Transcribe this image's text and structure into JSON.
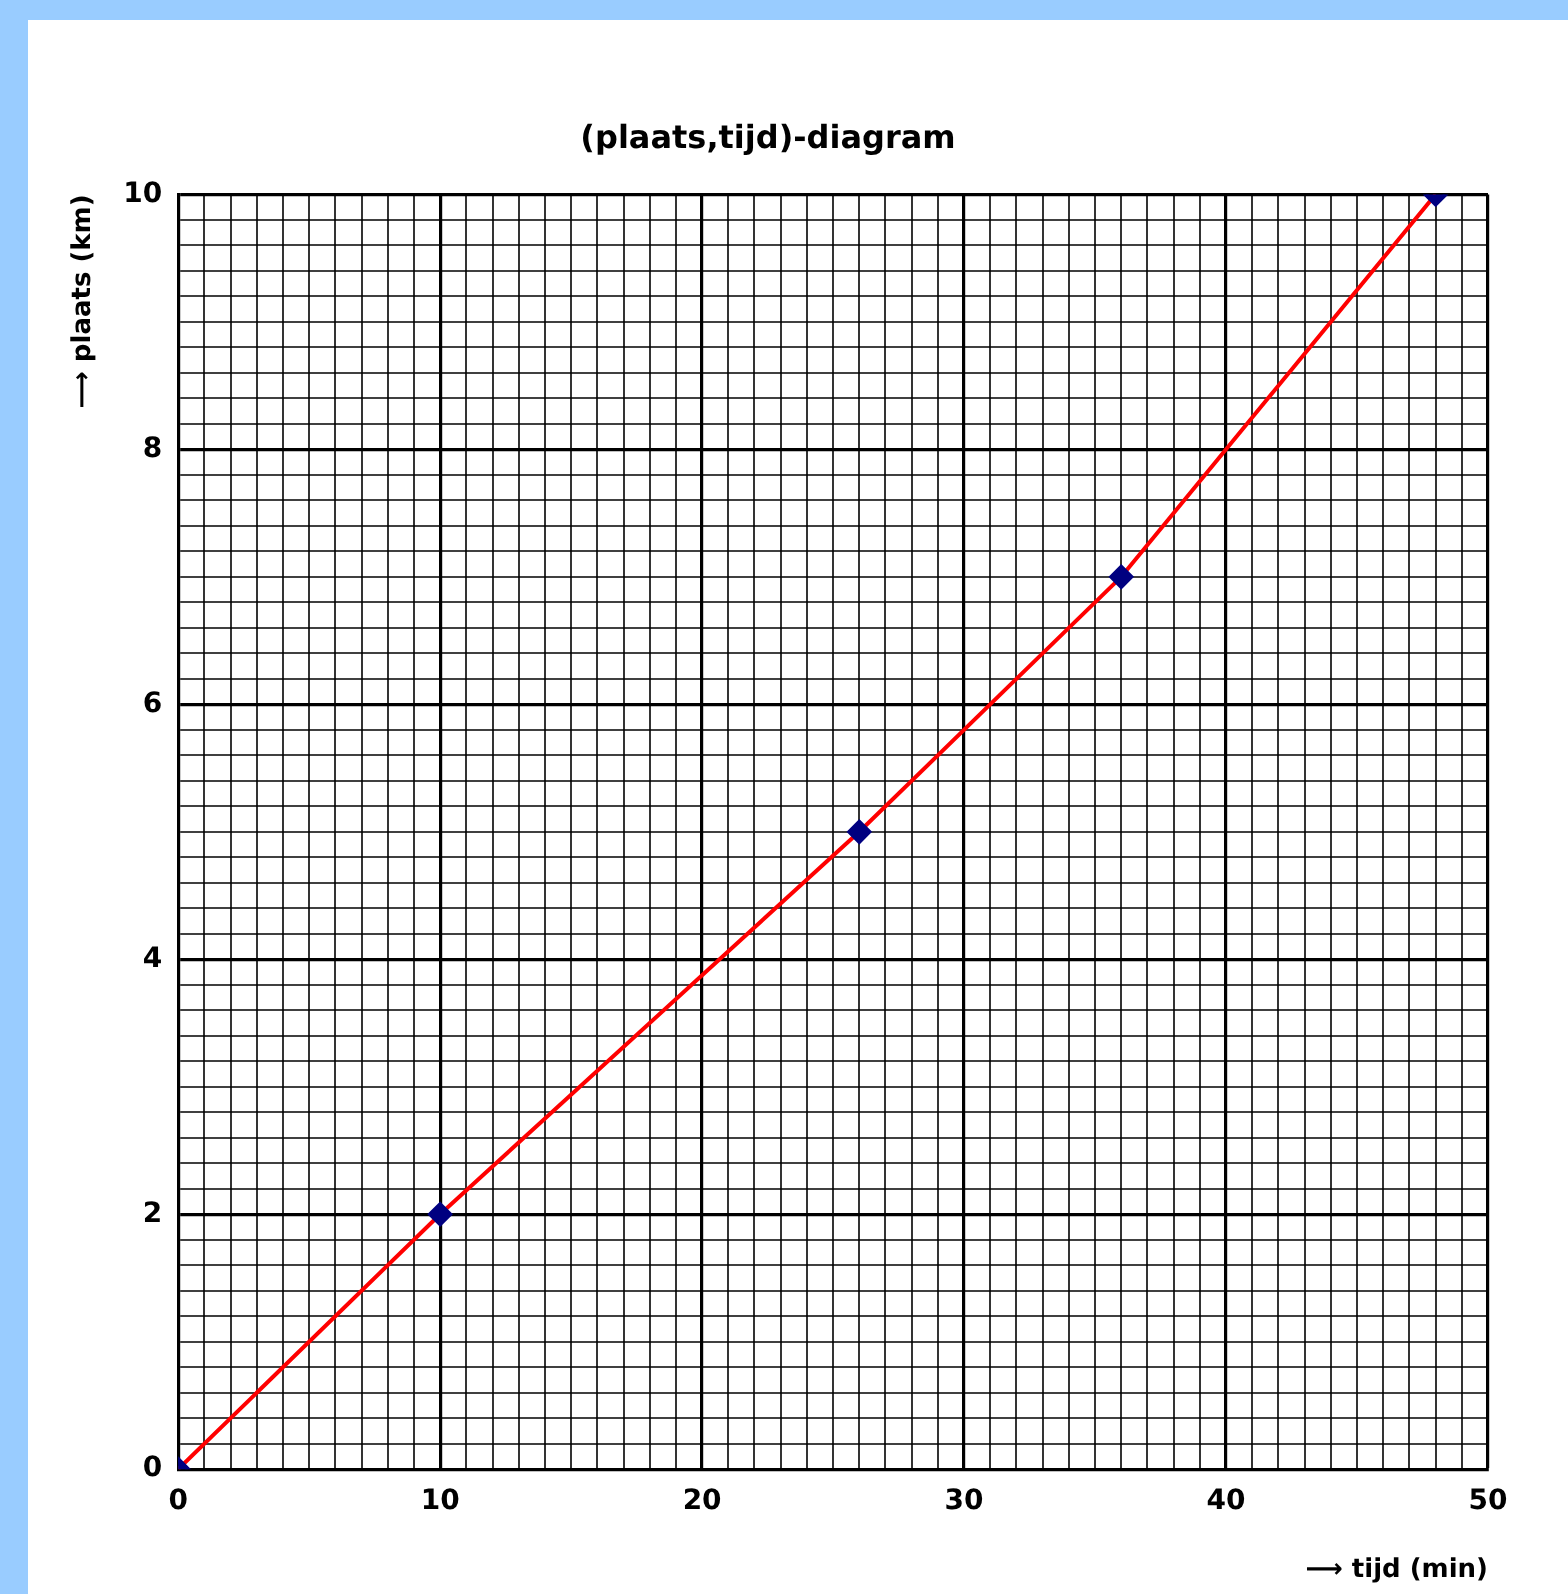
{
  "chart_data": {
    "type": "line",
    "title": "(plaats,tijd)-diagram",
    "xlabel": "⟶ tijd (min)",
    "ylabel": "⟶ plaats (km)",
    "x": [
      0,
      10,
      26,
      36,
      48
    ],
    "series": [
      {
        "color": "#ff0000",
        "colors": [
          "#000080",
          "#000080",
          "#000080",
          "#000080",
          "#000080"
        ],
        "values": [
          0,
          2,
          5,
          7,
          10
        ]
      }
    ],
    "marker": "diamond",
    "line_style": "solid",
    "grid": true,
    "legend": false,
    "xlim": [
      0,
      50
    ],
    "ylim": [
      0,
      10
    ],
    "xticks": [
      0,
      {
        "value": 1,
        "label": null
      },
      {
        "value": 2,
        "label": null
      },
      {
        "value": 3,
        "label": null
      },
      {
        "value": 4,
        "label": null
      },
      {
        "value": 5,
        "label": null
      },
      {
        "value": 6,
        "label": null
      },
      {
        "value": 7,
        "label": null
      },
      {
        "value": 8,
        "label": null
      },
      {
        "value": 9,
        "label": null
      },
      10,
      {
        "value": 11,
        "label": null
      },
      {
        "value": 12,
        "label": null
      },
      {
        "value": 13,
        "label": null
      },
      {
        "value": 14,
        "label": null
      },
      {
        "value": 15,
        "label": null
      },
      {
        "value": 16,
        "label": null
      },
      {
        "value": 17,
        "label": null
      },
      {
        "value": 18,
        "label": null
      },
      {
        "value": 19,
        "label": null
      },
      20,
      {
        "value": 21,
        "label": null
      },
      {
        "value": 22,
        "label": null
      },
      {
        "value": 23,
        "label": null
      },
      {
        "value": 24,
        "label": null
      },
      {
        "value": 25,
        "label": null
      },
      {
        "value": 26,
        "label": null
      },
      {
        "value": 27,
        "label": null
      },
      {
        "value": 28,
        "label": null
      },
      {
        "value": 29,
        "label": null
      },
      30,
      {
        "value": 31,
        "label": null
      },
      {
        "value": 32,
        "label": null
      },
      {
        "value": 33,
        "label": null
      },
      {
        "value": 34,
        "label": null
      },
      {
        "value": 35,
        "label": null
      },
      {
        "value": 36,
        "label": null
      },
      {
        "value": 37,
        "label": null
      },
      {
        "value": 38,
        "label": null
      },
      {
        "value": 39,
        "label": null
      },
      40,
      {
        "value": 41,
        "label": null
      },
      {
        "value": 42,
        "label": null
      },
      {
        "value": 43,
        "label": null
      },
      {
        "value": 44,
        "label": null
      },
      {
        "value": 45,
        "label": null
      },
      {
        "value": 46,
        "label": null
      },
      {
        "value": 47,
        "label": null
      },
      {
        "value": 48,
        "label": null
      },
      {
        "value": 49,
        "label": null
      },
      50
    ],
    "yticks": [
      0,
      {
        "value": 0.2,
        "label": null
      },
      {
        "value": 0.4,
        "label": null
      },
      {
        "value": 0.6,
        "label": null
      },
      {
        "value": 0.8,
        "label": null
      },
      {
        "value": 1,
        "label": null
      },
      {
        "value": 1.2,
        "label": null
      },
      {
        "value": 1.4,
        "label": null
      },
      {
        "value": 1.6,
        "label": null
      },
      {
        "value": 1.8,
        "label": null
      },
      2,
      {
        "value": 2.2,
        "label": null
      },
      {
        "value": 2.4,
        "label": null
      },
      {
        "value": 2.6,
        "label": null
      },
      {
        "value": 2.8,
        "label": null
      },
      {
        "value": 3,
        "label": null
      },
      {
        "value": 3.2,
        "label": null
      },
      {
        "value": 3.4,
        "label": null
      },
      {
        "value": 3.6,
        "label": null
      },
      {
        "value": 3.8,
        "label": null
      },
      4,
      {
        "value": 4.2,
        "label": null
      },
      {
        "value": 4.4,
        "label": null
      },
      {
        "value": 4.6,
        "label": null
      },
      {
        "value": 4.8,
        "label": null
      },
      {
        "value": 5,
        "label": null
      },
      {
        "value": 5.2,
        "label": null
      },
      {
        "value": 5.4,
        "label": null
      },
      {
        "value": 5.6,
        "label": null
      },
      {
        "value": 5.8,
        "label": null
      },
      6,
      {
        "value": 6.2,
        "label": null
      },
      {
        "value": 6.4,
        "label": null
      },
      {
        "value": 6.6,
        "label": null
      },
      {
        "value": 6.8,
        "label": null
      },
      {
        "value": 7,
        "label": null
      },
      {
        "value": 7.2,
        "label": null
      },
      {
        "value": 7.4,
        "label": null
      },
      {
        "value": 7.6,
        "label": null
      },
      {
        "value": 7.8,
        "label": null
      },
      8,
      {
        "value": 8.2,
        "label": null
      },
      {
        "value": 8.4,
        "label": null
      },
      {
        "value": 8.6,
        "label": null
      },
      {
        "value": 8.8,
        "label": null
      },
      {
        "value": 9,
        "label": null
      },
      {
        "value": 9.2,
        "label": null
      },
      {
        "value": 9.4,
        "label": null
      },
      {
        "value": 9.6,
        "label": null
      },
      {
        "value": 9.8,
        "label": null
      },
      10
    ]
  }
}
